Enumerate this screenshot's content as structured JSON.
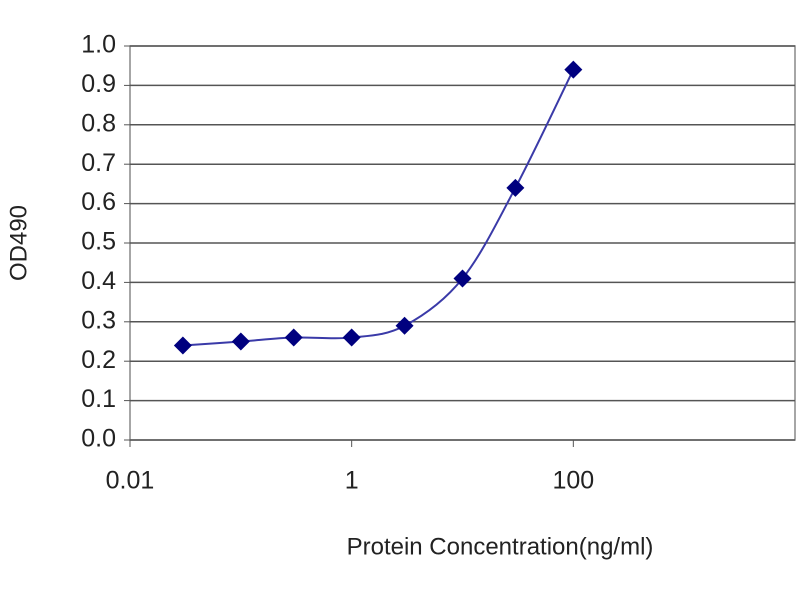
{
  "chart_data": {
    "type": "line",
    "x_label": "Protein Concentration(ng/ml)",
    "y_label": "OD490",
    "x": [
      0.03,
      0.1,
      0.3,
      1,
      3,
      10,
      30,
      100
    ],
    "values": [
      0.24,
      0.25,
      0.26,
      0.26,
      0.29,
      0.41,
      0.64,
      0.94
    ],
    "color": "#00007f",
    "line_color": "#3a3aa8",
    "x_log": true,
    "xlim": [
      0.01,
      10000
    ],
    "xticks": [
      0.01,
      1,
      100
    ],
    "ylim": [
      0,
      1
    ],
    "yticks": [
      {
        "value": 0,
        "label": "0.0"
      },
      0.1,
      0.2,
      0.3,
      0.4,
      0.5,
      0.6,
      0.7,
      0.8,
      0.9,
      {
        "value": 1,
        "label": "1.0"
      }
    ],
    "grid": true
  }
}
